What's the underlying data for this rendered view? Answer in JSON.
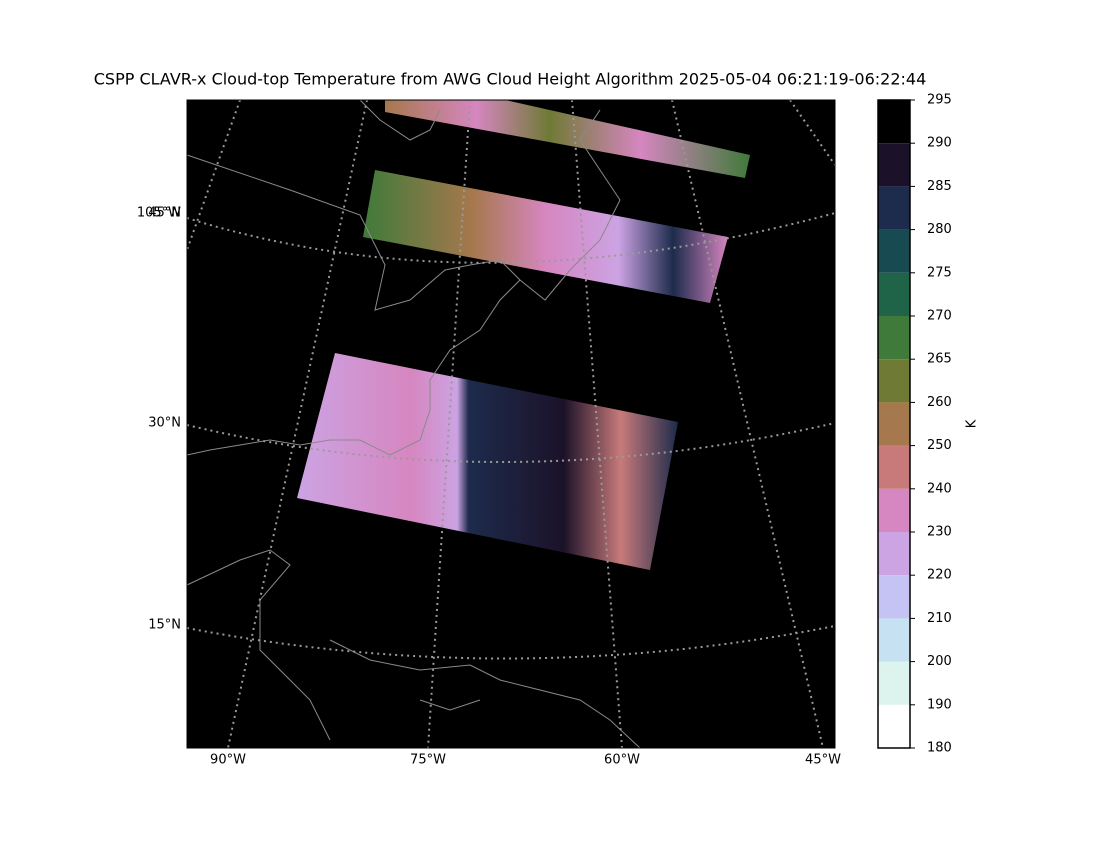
{
  "title": "CSPP CLAVR-x Cloud-top Temperature from AWG Cloud Height Algorithm 2025-05-04 06:21:19-06:22:44",
  "map": {
    "lat_labels": [
      "45°N",
      "30°N",
      "15°N"
    ],
    "lon_labels": [
      "90°W",
      "75°W",
      "60°W",
      "45°W"
    ],
    "edge_lon_label": "105°W"
  },
  "colorbar": {
    "label": "K",
    "levels": [
      180,
      190,
      200,
      210,
      220,
      230,
      240,
      250,
      260,
      265,
      270,
      275,
      280,
      285,
      290,
      295
    ],
    "colors": [
      "#ffffff",
      "#dcf3ee",
      "#c6e1f1",
      "#c4c3f3",
      "#cca3e3",
      "#d686c0",
      "#c87a7a",
      "#a6784d",
      "#6f7a35",
      "#3f7a3a",
      "#1f6349",
      "#184a52",
      "#1d2b4c",
      "#1b1229",
      "#000000"
    ]
  }
}
